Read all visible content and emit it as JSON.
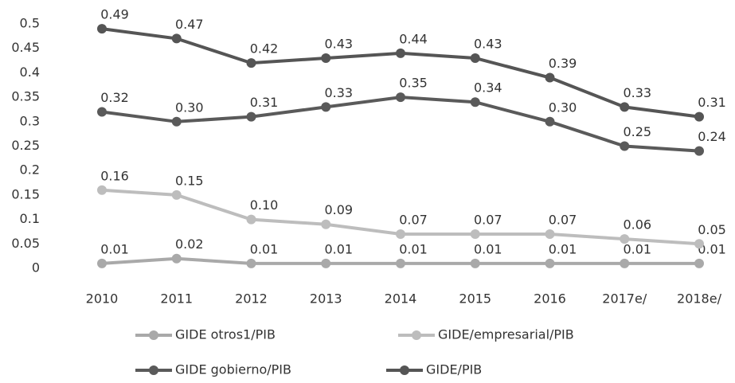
{
  "chart_data": {
    "type": "line",
    "categories": [
      "2010",
      "2011",
      "2012",
      "2013",
      "2014",
      "2015",
      "2016",
      "2017e/",
      "2018e/"
    ],
    "series": [
      {
        "name": "GIDE otros1/PIB",
        "color": "#a9a9a9",
        "values": [
          0.01,
          0.02,
          0.01,
          0.01,
          0.01,
          0.01,
          0.01,
          0.01,
          0.01
        ],
        "value_labels": [
          "0.01",
          "0.02",
          "0.01",
          "0.01",
          "0.01",
          "0.01",
          "0.01",
          "0.01",
          "0.01"
        ]
      },
      {
        "name": "GIDE/empresarial/PIB",
        "color": "#bdbdbd",
        "values": [
          0.16,
          0.15,
          0.1,
          0.09,
          0.07,
          0.07,
          0.07,
          0.06,
          0.05
        ],
        "value_labels": [
          "0.16",
          "0.15",
          "0.10",
          "0.09",
          "0.07",
          "0.07",
          "0.07",
          "0.06",
          "0.05"
        ]
      },
      {
        "name": "GIDE gobierno/PIB",
        "color": "#5a5a5a",
        "values": [
          0.32,
          0.3,
          0.31,
          0.33,
          0.35,
          0.34,
          0.3,
          0.25,
          0.24
        ],
        "value_labels": [
          "0.32",
          "0.30",
          "0.31",
          "0.33",
          "0.35",
          "0.34",
          "0.30",
          "0.25",
          "0.24"
        ]
      },
      {
        "name": "GIDE/PIB",
        "color": "#555555",
        "values": [
          0.49,
          0.47,
          0.42,
          0.43,
          0.44,
          0.43,
          0.39,
          0.33,
          0.31
        ],
        "value_labels": [
          "0.49",
          "0.47",
          "0.42",
          "0.43",
          "0.44",
          "0.43",
          "0.39",
          "0.33",
          "0.31"
        ]
      }
    ],
    "ylim": [
      0,
      0.5
    ],
    "yticks": [
      0,
      0.05,
      0.1,
      0.15,
      0.2,
      0.25,
      0.3,
      0.35,
      0.4,
      0.45,
      0.5
    ],
    "grid": false,
    "legend": "bottom"
  }
}
